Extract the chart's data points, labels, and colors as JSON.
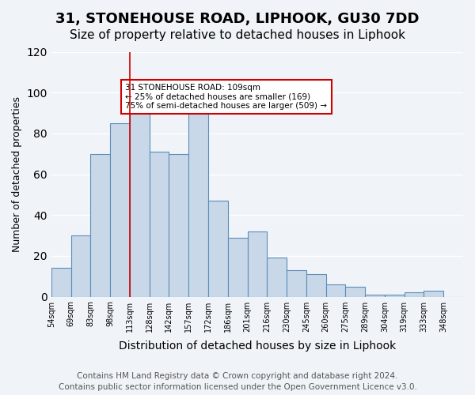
{
  "title": "31, STONEHOUSE ROAD, LIPHOOK, GU30 7DD",
  "subtitle": "Size of property relative to detached houses in Liphook",
  "xlabel": "Distribution of detached houses by size in Liphook",
  "ylabel": "Number of detached properties",
  "bar_labels": [
    "54sqm",
    "69sqm",
    "83sqm",
    "98sqm",
    "113sqm",
    "128sqm",
    "142sqm",
    "157sqm",
    "172sqm",
    "186sqm",
    "201sqm",
    "216sqm",
    "230sqm",
    "245sqm",
    "260sqm",
    "275sqm",
    "289sqm",
    "304sqm",
    "319sqm",
    "333sqm",
    "348sqm"
  ],
  "bar_heights": [
    14,
    30,
    70,
    85,
    91,
    71,
    70,
    90,
    47,
    29,
    32,
    19,
    13,
    11,
    6,
    5,
    1,
    1,
    2,
    3,
    0
  ],
  "bar_color": "#c8d8e8",
  "bar_edge_color": "#5b8db8",
  "ylim": [
    0,
    120
  ],
  "yticks": [
    0,
    20,
    40,
    60,
    80,
    100,
    120
  ],
  "vline_x": 4,
  "vline_color": "#cc0000",
  "annotation_title": "31 STONEHOUSE ROAD: 109sqm",
  "annotation_line1": "← 25% of detached houses are smaller (169)",
  "annotation_line2": "75% of semi-detached houses are larger (509) →",
  "annotation_box_color": "#ffffff",
  "annotation_box_edge": "#cc0000",
  "footer_line1": "Contains HM Land Registry data © Crown copyright and database right 2024.",
  "footer_line2": "Contains public sector information licensed under the Open Government Licence v3.0.",
  "background_color": "#f0f4f8",
  "grid_color": "#ffffff",
  "title_fontsize": 13,
  "subtitle_fontsize": 11,
  "xlabel_fontsize": 10,
  "ylabel_fontsize": 9,
  "footer_fontsize": 7.5
}
